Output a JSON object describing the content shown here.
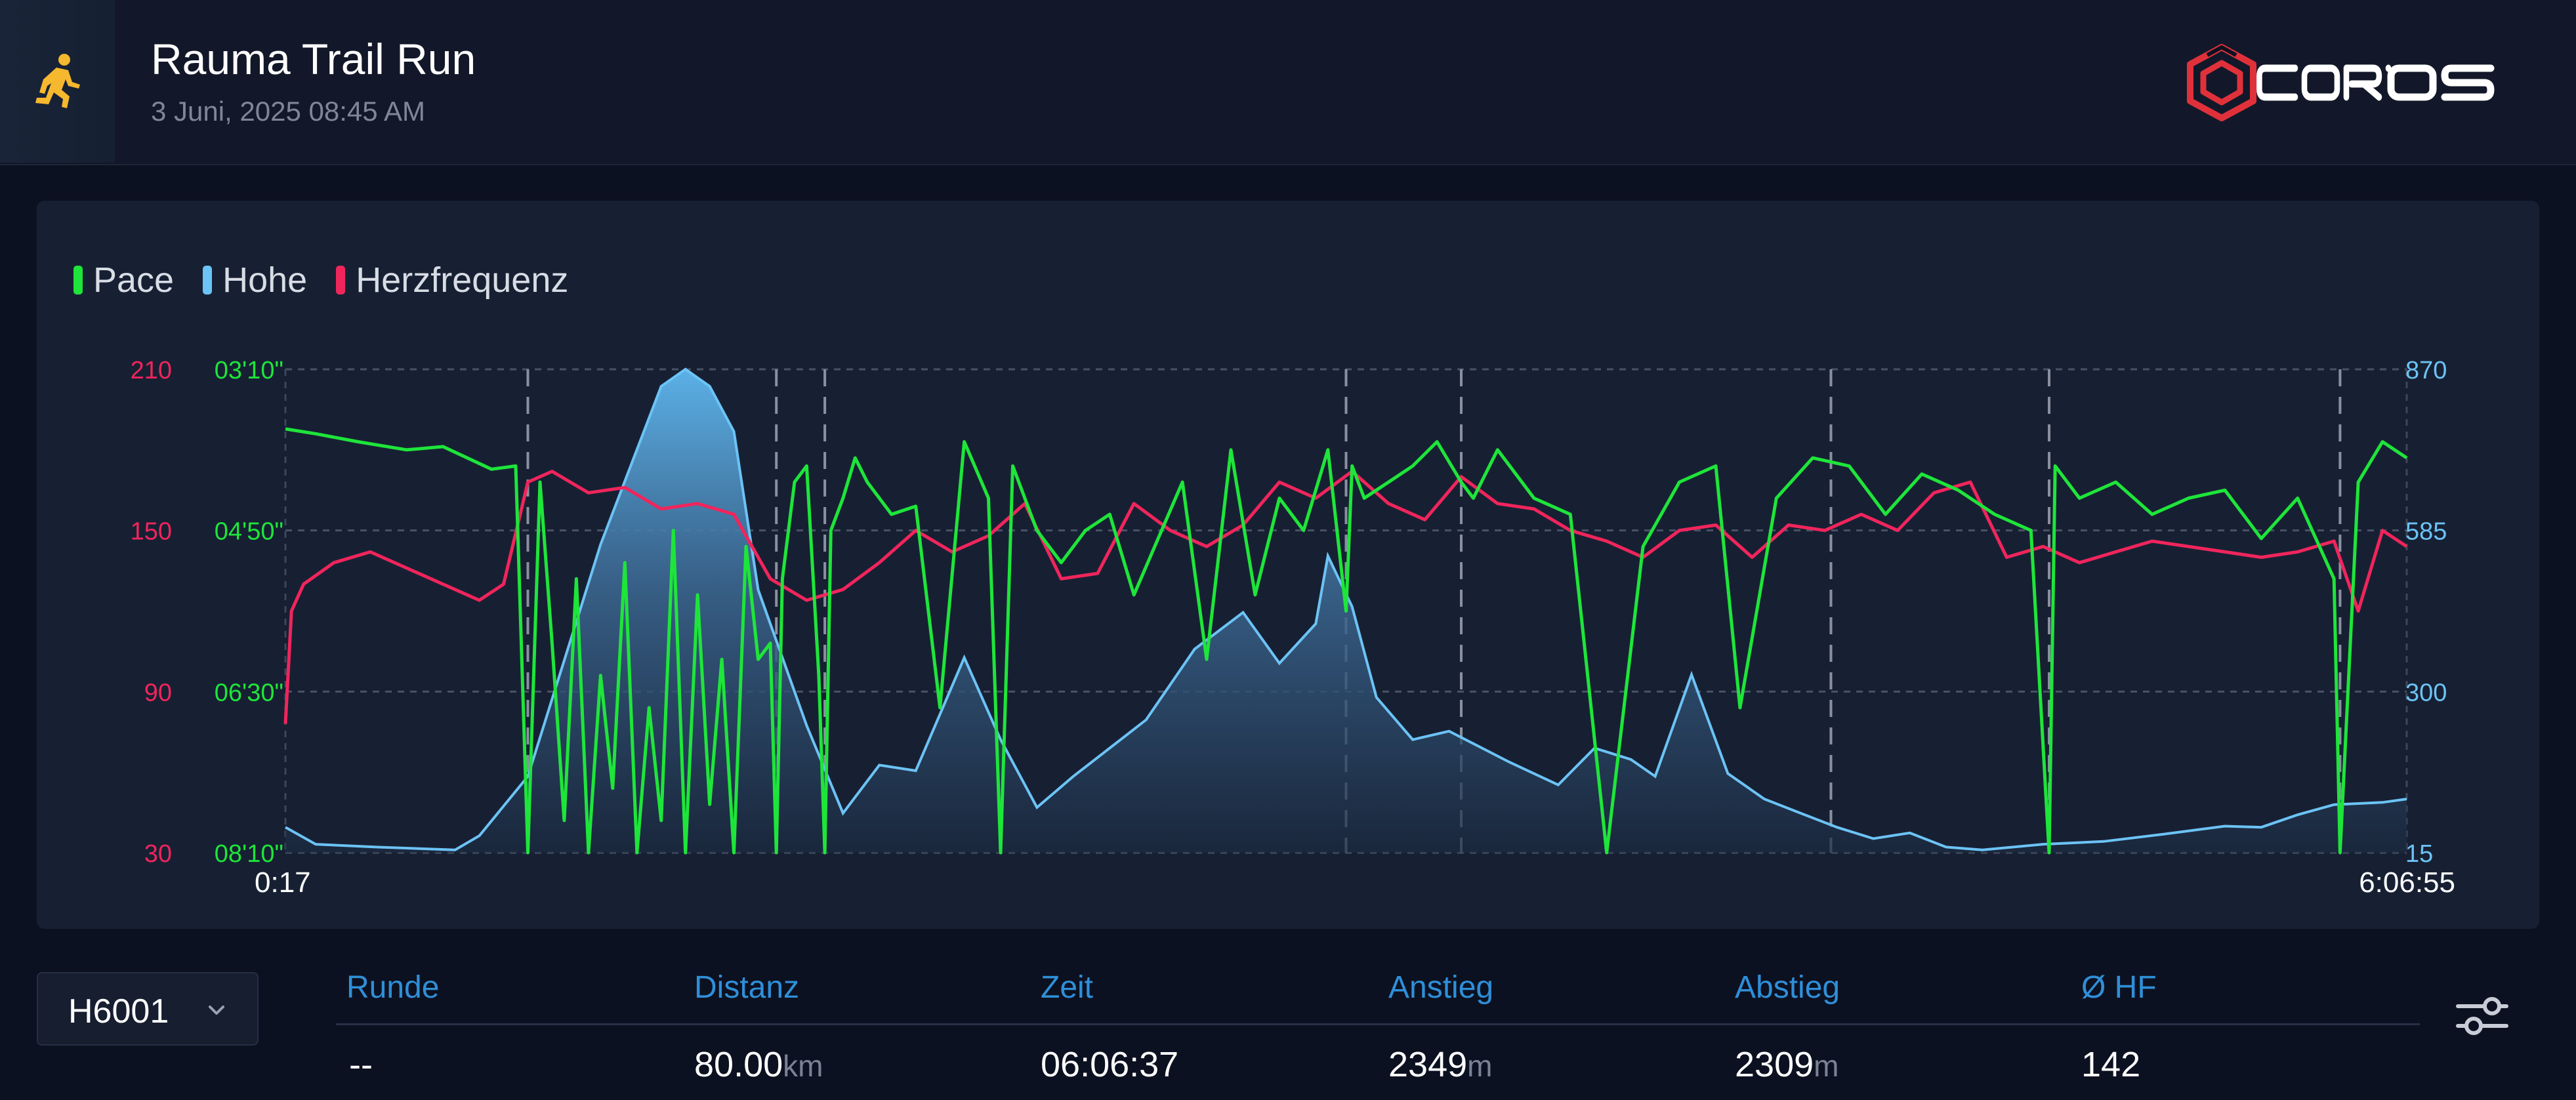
{
  "header": {
    "title": "Rauma Trail Run",
    "subtitle": "3 Juni, 2025 08:45 AM",
    "activity_icon": "running-person-icon",
    "logo_text": "COROS",
    "colors": {
      "icon": "#f5b82e",
      "logo_red": "#e0313b"
    }
  },
  "legend": [
    {
      "label": "Pace",
      "color": "#1ee53a"
    },
    {
      "label": "Hohe",
      "color": "#6cc3f5"
    },
    {
      "label": "Herzfrequenz",
      "color": "#f0255c"
    }
  ],
  "chart_data": {
    "type": "line",
    "x_start": "0:17",
    "x_end": "6:06:55",
    "heart_rate_ticks": [
      "210",
      "150",
      "90",
      "30"
    ],
    "pace_ticks": [
      "03'10\"",
      "04'50\"",
      "06'30\"",
      "08'10\""
    ],
    "elevation_ticks": [
      "870",
      "585",
      "300",
      "15"
    ],
    "hr_range": [
      30,
      210
    ],
    "elevation_range": [
      15,
      870
    ],
    "pace_range_sec_per_km": [
      190,
      490
    ],
    "lap_markers_minutes": [
      40,
      81,
      89,
      175,
      194,
      255,
      291,
      339
    ],
    "series": [
      {
        "name": "Hohe",
        "color": "#6cc3f5",
        "unit": "m",
        "x_minutes": [
          0,
          5,
          15,
          28,
          32,
          40,
          52,
          62,
          66,
          70,
          74,
          78,
          86,
          92,
          98,
          104,
          112,
          118,
          124,
          130,
          136,
          142,
          150,
          158,
          164,
          170,
          172,
          176,
          180,
          186,
          192,
          202,
          210,
          216,
          222,
          226,
          232,
          238,
          244,
          250,
          256,
          262,
          268,
          274,
          280,
          290,
          300,
          310,
          320,
          326,
          332,
          338,
          346,
          350
        ],
        "values": [
          60,
          30,
          25,
          20,
          45,
          150,
          560,
          840,
          870,
          840,
          760,
          480,
          240,
          85,
          170,
          160,
          360,
          215,
          95,
          150,
          200,
          250,
          375,
          440,
          350,
          420,
          540,
          450,
          290,
          215,
          230,
          175,
          135,
          200,
          180,
          150,
          330,
          155,
          110,
          85,
          60,
          40,
          50,
          25,
          20,
          30,
          35,
          48,
          62,
          60,
          82,
          100,
          104,
          110
        ]
      },
      {
        "name": "Herzfrequenz",
        "color": "#f0255c",
        "unit": "bpm",
        "x_minutes": [
          0,
          1,
          3,
          8,
          14,
          20,
          26,
          32,
          36,
          40,
          44,
          50,
          56,
          62,
          68,
          74,
          80,
          86,
          92,
          98,
          104,
          110,
          116,
          122,
          128,
          134,
          140,
          146,
          152,
          158,
          164,
          170,
          176,
          182,
          188,
          194,
          200,
          206,
          212,
          218,
          224,
          230,
          236,
          242,
          248,
          254,
          260,
          266,
          272,
          278,
          284,
          290,
          296,
          302,
          308,
          314,
          320,
          326,
          332,
          338,
          342,
          346,
          350
        ],
        "values": [
          78,
          120,
          130,
          138,
          142,
          136,
          130,
          124,
          130,
          168,
          172,
          164,
          166,
          158,
          160,
          156,
          132,
          124,
          128,
          138,
          150,
          142,
          148,
          160,
          132,
          134,
          160,
          150,
          144,
          152,
          168,
          162,
          172,
          160,
          154,
          170,
          160,
          158,
          150,
          146,
          140,
          150,
          152,
          140,
          152,
          150,
          156,
          150,
          164,
          168,
          140,
          144,
          138,
          142,
          146,
          144,
          142,
          140,
          142,
          146,
          120,
          150,
          144
        ]
      },
      {
        "name": "Pace",
        "color": "#1ee53a",
        "unit": "min/km",
        "x_minutes": [
          0,
          5,
          12,
          20,
          26,
          34,
          38,
          40,
          42,
          44,
          46,
          48,
          50,
          52,
          54,
          56,
          58,
          60,
          62,
          64,
          66,
          68,
          70,
          72,
          74,
          76,
          78,
          80,
          81,
          82,
          84,
          86,
          88,
          89,
          90,
          92,
          94,
          96,
          100,
          104,
          108,
          112,
          116,
          118,
          120,
          124,
          128,
          132,
          136,
          140,
          144,
          148,
          152,
          156,
          160,
          164,
          168,
          172,
          175,
          176,
          178,
          182,
          186,
          190,
          194,
          196,
          200,
          206,
          212,
          218,
          224,
          230,
          236,
          240,
          246,
          252,
          258,
          264,
          270,
          276,
          282,
          288,
          291,
          292,
          296,
          302,
          308,
          314,
          320,
          326,
          332,
          338,
          339,
          342,
          346,
          350
        ],
        "values": [
          "03'47\"",
          "03'50\"",
          "03'55\"",
          "04'00\"",
          "03'58\"",
          "04'12\"",
          "04'10\"",
          "08'10\"",
          "04'20\"",
          "06'00\"",
          "07'50\"",
          "05'20\"",
          "08'10\"",
          "06'20\"",
          "07'30\"",
          "05'10\"",
          "08'10\"",
          "06'40\"",
          "07'50\"",
          "04'50\"",
          "08'10\"",
          "05'30\"",
          "07'40\"",
          "06'10\"",
          "08'10\"",
          "05'00\"",
          "06'10\"",
          "06'00\"",
          "08'10\"",
          "05'20\"",
          "04'20\"",
          "04'10\"",
          "06'20\"",
          "08'10\"",
          "04'50\"",
          "04'30\"",
          "04'05\"",
          "04'20\"",
          "04'40\"",
          "04'35\"",
          "06'40\"",
          "03'55\"",
          "04'30\"",
          "08'10\"",
          "04'10\"",
          "04'50\"",
          "05'10\"",
          "04'50\"",
          "04'40\"",
          "05'30\"",
          "04'55\"",
          "04'20\"",
          "06'10\"",
          "04'00\"",
          "05'30\"",
          "04'30\"",
          "04'50\"",
          "04'00\"",
          "05'40\"",
          "04'10\"",
          "04'30\"",
          "04'20\"",
          "04'10\"",
          "03'55\"",
          "04'20\"",
          "04'30\"",
          "04'00\"",
          "04'30\"",
          "04'40\"",
          "08'10\"",
          "05'00\"",
          "04'20\"",
          "04'10\"",
          "06'40\"",
          "04'30\"",
          "04'05\"",
          "04'10\"",
          "04'40\"",
          "04'15\"",
          "04'25\"",
          "04'40\"",
          "04'50\"",
          "08'10\"",
          "04'10\"",
          "04'30\"",
          "04'20\"",
          "04'40\"",
          "04'30\"",
          "04'25\"",
          "04'55\"",
          "04'30\"",
          "05'20\"",
          "08'10\"",
          "04'20\"",
          "03'55\"",
          "04'05\""
        ]
      }
    ]
  },
  "lap_selector": {
    "value": "H6001",
    "icon": "chevron-down-icon"
  },
  "table": {
    "columns": [
      {
        "header": "Runde",
        "value": "--",
        "unit": ""
      },
      {
        "header": "Distanz",
        "value": "80.00",
        "unit": "km"
      },
      {
        "header": "Zeit",
        "value": "06:06:37",
        "unit": ""
      },
      {
        "header": "Anstieg",
        "value": "2349",
        "unit": "m"
      },
      {
        "header": "Abstieg",
        "value": "2309",
        "unit": "m"
      },
      {
        "header": "Ø HF",
        "value": "142",
        "unit": ""
      }
    ]
  },
  "settings_icon": "sliders-icon"
}
